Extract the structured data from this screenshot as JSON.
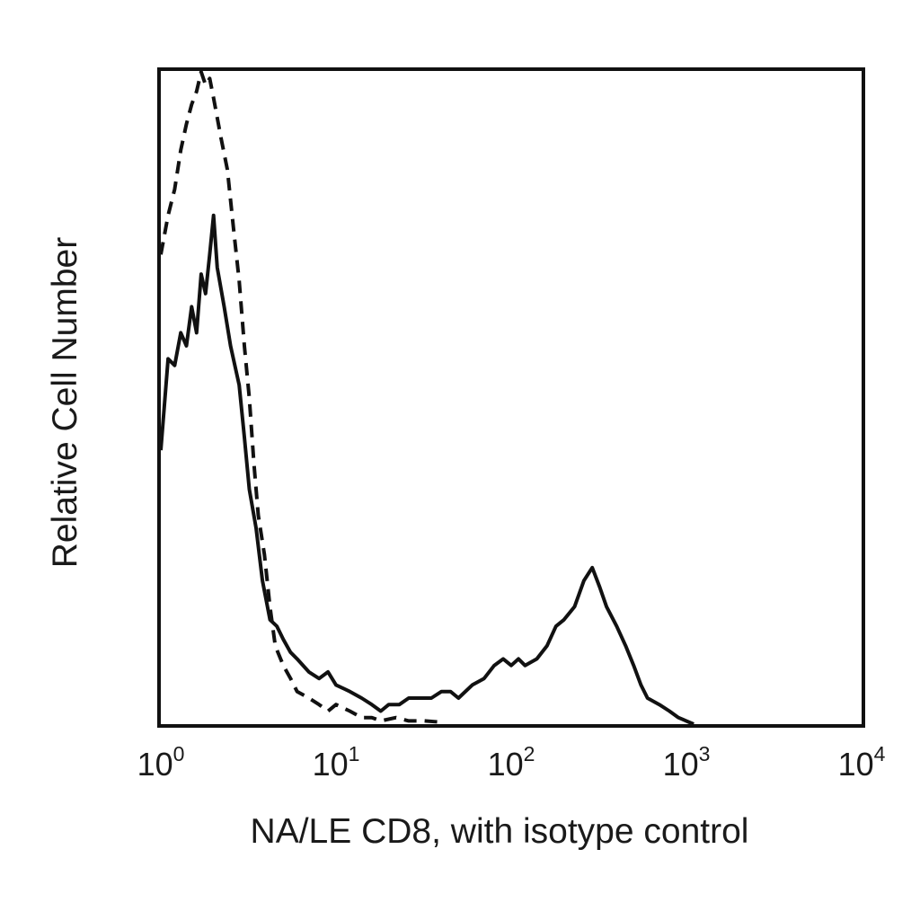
{
  "chart_data": {
    "type": "line",
    "title": "",
    "xlabel": "NA/LE CD8, with isotype control",
    "ylabel": "Relative Cell Number",
    "xscale": "log",
    "xlim": [
      1,
      10000
    ],
    "ylim": [
      0,
      1
    ],
    "grid": false,
    "legend": "none",
    "x_ticks": [
      {
        "value": 1,
        "base": "10",
        "exp": "0"
      },
      {
        "value": 10,
        "base": "10",
        "exp": "1"
      },
      {
        "value": 100,
        "base": "10",
        "exp": "2"
      },
      {
        "value": 1000,
        "base": "10",
        "exp": "3"
      },
      {
        "value": 10000,
        "base": "10",
        "exp": "4"
      }
    ],
    "series": [
      {
        "style": "solid",
        "color": "#111111",
        "points": [
          [
            1.0,
            0.42
          ],
          [
            1.1,
            0.56
          ],
          [
            1.2,
            0.55
          ],
          [
            1.3,
            0.6
          ],
          [
            1.4,
            0.58
          ],
          [
            1.5,
            0.64
          ],
          [
            1.6,
            0.6
          ],
          [
            1.7,
            0.69
          ],
          [
            1.8,
            0.66
          ],
          [
            1.9,
            0.72
          ],
          [
            2.0,
            0.78
          ],
          [
            2.1,
            0.7
          ],
          [
            2.3,
            0.64
          ],
          [
            2.5,
            0.58
          ],
          [
            2.8,
            0.52
          ],
          [
            3.0,
            0.44
          ],
          [
            3.2,
            0.36
          ],
          [
            3.5,
            0.3
          ],
          [
            3.8,
            0.22
          ],
          [
            4.2,
            0.16
          ],
          [
            4.6,
            0.15
          ],
          [
            5.0,
            0.13
          ],
          [
            5.5,
            0.11
          ],
          [
            6.0,
            0.1
          ],
          [
            7.0,
            0.08
          ],
          [
            8.0,
            0.07
          ],
          [
            9.0,
            0.08
          ],
          [
            10.0,
            0.06
          ],
          [
            12.0,
            0.05
          ],
          [
            14.0,
            0.04
          ],
          [
            16.0,
            0.03
          ],
          [
            18.0,
            0.02
          ],
          [
            20.0,
            0.03
          ],
          [
            23.0,
            0.03
          ],
          [
            26.0,
            0.04
          ],
          [
            30.0,
            0.04
          ],
          [
            35.0,
            0.04
          ],
          [
            40.0,
            0.05
          ],
          [
            45.0,
            0.05
          ],
          [
            50.0,
            0.04
          ],
          [
            60.0,
            0.06
          ],
          [
            70.0,
            0.07
          ],
          [
            80.0,
            0.09
          ],
          [
            90.0,
            0.1
          ],
          [
            100.0,
            0.09
          ],
          [
            110.0,
            0.1
          ],
          [
            120.0,
            0.09
          ],
          [
            140.0,
            0.1
          ],
          [
            160.0,
            0.12
          ],
          [
            180.0,
            0.15
          ],
          [
            200.0,
            0.16
          ],
          [
            230.0,
            0.18
          ],
          [
            260.0,
            0.22
          ],
          [
            290.0,
            0.24
          ],
          [
            320.0,
            0.21
          ],
          [
            350.0,
            0.18
          ],
          [
            400.0,
            0.15
          ],
          [
            450.0,
            0.12
          ],
          [
            500.0,
            0.09
          ],
          [
            550.0,
            0.06
          ],
          [
            600.0,
            0.04
          ],
          [
            700.0,
            0.03
          ],
          [
            800.0,
            0.02
          ],
          [
            900.0,
            0.01
          ],
          [
            1100.0,
            0.0
          ]
        ]
      },
      {
        "style": "dashed",
        "color": "#111111",
        "points": [
          [
            1.0,
            0.72
          ],
          [
            1.1,
            0.78
          ],
          [
            1.2,
            0.82
          ],
          [
            1.3,
            0.88
          ],
          [
            1.4,
            0.92
          ],
          [
            1.5,
            0.95
          ],
          [
            1.6,
            0.97
          ],
          [
            1.7,
            1.0
          ],
          [
            1.8,
            0.98
          ],
          [
            1.9,
            0.99
          ],
          [
            2.0,
            0.96
          ],
          [
            2.2,
            0.9
          ],
          [
            2.4,
            0.85
          ],
          [
            2.6,
            0.76
          ],
          [
            2.8,
            0.68
          ],
          [
            3.0,
            0.58
          ],
          [
            3.2,
            0.5
          ],
          [
            3.4,
            0.4
          ],
          [
            3.6,
            0.32
          ],
          [
            3.9,
            0.26
          ],
          [
            4.2,
            0.18
          ],
          [
            4.5,
            0.12
          ],
          [
            5.0,
            0.09
          ],
          [
            5.5,
            0.07
          ],
          [
            6.0,
            0.05
          ],
          [
            7.0,
            0.04
          ],
          [
            8.0,
            0.03
          ],
          [
            9.0,
            0.02
          ],
          [
            10.0,
            0.03
          ],
          [
            12.0,
            0.02
          ],
          [
            14.0,
            0.01
          ],
          [
            16.0,
            0.01
          ],
          [
            18.0,
            0.005
          ],
          [
            22.0,
            0.01
          ],
          [
            26.0,
            0.005
          ],
          [
            32.0,
            0.005
          ],
          [
            40.0,
            0.003
          ]
        ]
      }
    ]
  }
}
